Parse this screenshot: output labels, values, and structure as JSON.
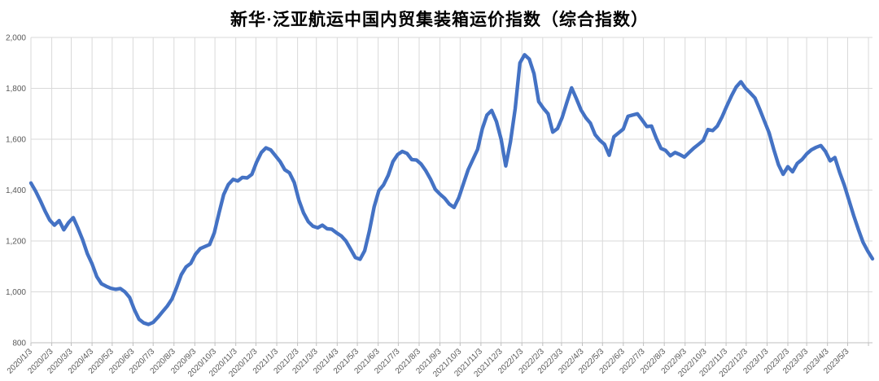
{
  "title": "新华·泛亚航运中国内贸集装箱运价指数（综合指数）",
  "colors": {
    "line": "#4472C4",
    "grid": "#D9D9D9",
    "axis": "#BFBFBF",
    "tick_label": "#595959",
    "title": "#000000",
    "background": "#FFFFFF"
  },
  "chart_data": {
    "type": "line",
    "title": "新华·泛亚航运中国内贸集装箱运价指数（综合指数）",
    "xlabel": "",
    "ylabel": "",
    "ylim": [
      800,
      2000
    ],
    "y_tick_step": 200,
    "grid": true,
    "legend": "none",
    "marker": "none",
    "y_tick_labels": [
      "800",
      "1,000",
      "1,200",
      "1,400",
      "1,600",
      "1,800",
      "2,000"
    ],
    "x_tick_labels": [
      "2020/1/3",
      "2020/2/3",
      "2020/3/3",
      "2020/4/3",
      "2020/5/3",
      "2020/6/3",
      "2020/7/3",
      "2020/8/3",
      "2020/9/3",
      "2020/10/3",
      "2020/11/3",
      "2020/12/3",
      "2021/1/3",
      "2021/2/3",
      "2021/3/3",
      "2021/4/3",
      "2021/5/3",
      "2021/6/3",
      "2021/7/3",
      "2021/8/3",
      "2021/9/3",
      "2021/10/3",
      "2021/11/3",
      "2021/12/3",
      "2022/1/3",
      "2022/2/3",
      "2022/3/3",
      "2022/4/3",
      "2022/5/3",
      "2022/6/3",
      "2022/7/3",
      "2022/8/3",
      "2022/9/3",
      "2022/10/3",
      "2022/11/3",
      "2022/12/3",
      "2023/1/3",
      "2023/2/3",
      "2023/3/3",
      "2023/4/3",
      "2023/5/3"
    ],
    "x_start_date": "2020/1/3",
    "x_interval_days": 7,
    "series": [
      {
        "name": "综合指数",
        "values": [
          1428,
          1396,
          1358,
          1318,
          1282,
          1262,
          1280,
          1244,
          1272,
          1292,
          1250,
          1205,
          1150,
          1110,
          1060,
          1032,
          1022,
          1014,
          1010,
          1013,
          1000,
          978,
          930,
          892,
          878,
          872,
          880,
          900,
          922,
          944,
          972,
          1018,
          1068,
          1098,
          1112,
          1148,
          1170,
          1178,
          1186,
          1232,
          1310,
          1382,
          1422,
          1442,
          1436,
          1450,
          1448,
          1462,
          1510,
          1548,
          1566,
          1558,
          1535,
          1512,
          1480,
          1468,
          1430,
          1360,
          1310,
          1276,
          1258,
          1252,
          1262,
          1248,
          1246,
          1232,
          1220,
          1200,
          1168,
          1135,
          1128,
          1162,
          1240,
          1334,
          1398,
          1420,
          1458,
          1512,
          1540,
          1552,
          1544,
          1520,
          1518,
          1502,
          1476,
          1443,
          1403,
          1384,
          1368,
          1345,
          1332,
          1370,
          1425,
          1480,
          1520,
          1560,
          1640,
          1695,
          1713,
          1670,
          1600,
          1495,
          1590,
          1720,
          1900,
          1932,
          1915,
          1858,
          1748,
          1722,
          1700,
          1628,
          1642,
          1685,
          1745,
          1802,
          1760,
          1715,
          1685,
          1663,
          1618,
          1596,
          1580,
          1537,
          1610,
          1625,
          1640,
          1690,
          1695,
          1700,
          1676,
          1650,
          1652,
          1604,
          1564,
          1556,
          1535,
          1548,
          1540,
          1530,
          1548,
          1565,
          1580,
          1595,
          1638,
          1634,
          1652,
          1688,
          1730,
          1770,
          1805,
          1826,
          1800,
          1782,
          1762,
          1718,
          1672,
          1626,
          1560,
          1500,
          1462,
          1492,
          1472,
          1505,
          1520,
          1542,
          1558,
          1568,
          1575,
          1552,
          1515,
          1528,
          1470,
          1420,
          1360,
          1300,
          1245,
          1195,
          1160,
          1130
        ]
      }
    ]
  }
}
